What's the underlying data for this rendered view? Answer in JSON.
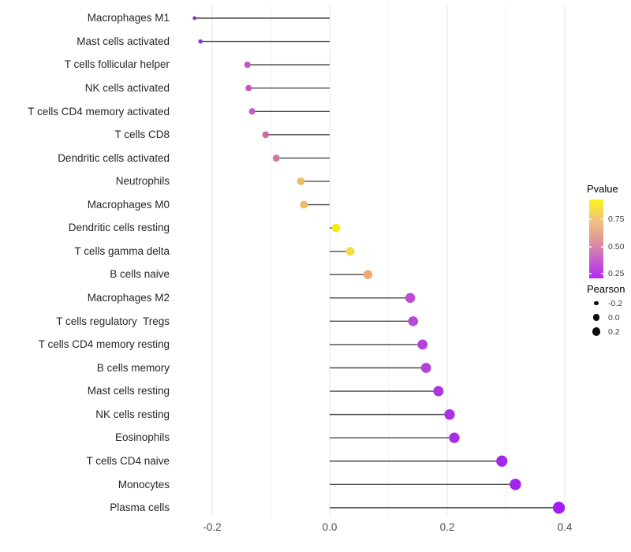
{
  "figure": {
    "background": "#ffffff",
    "title": ""
  },
  "chart_data": {
    "type": "lollipop",
    "orientation": "horizontal",
    "xlabel": "",
    "ylabel": "",
    "xlim": [
      -0.26,
      0.425
    ],
    "grid": "vertical-only",
    "x_ticks": [
      {
        "value": -0.2,
        "label": "-0.2"
      },
      {
        "value": 0.0,
        "label": "0.0"
      },
      {
        "value": 0.2,
        "label": "0.2"
      },
      {
        "value": 0.4,
        "label": "0.4"
      }
    ],
    "x_minor_ticks": [
      -0.1,
      0.1,
      0.3
    ],
    "series_name": "Pearson correlation",
    "rows": [
      {
        "label": "Macrophages M1",
        "pearson": -0.23,
        "color": "#8227D3"
      },
      {
        "label": "Mast cells activated",
        "pearson": -0.22,
        "color": "#8E2CD8"
      },
      {
        "label": "T cells follicular helper",
        "pearson": -0.14,
        "color": "#C353C8"
      },
      {
        "label": "NK cells activated",
        "pearson": -0.138,
        "color": "#C455C6"
      },
      {
        "label": "T cells CD4 memory activated",
        "pearson": -0.132,
        "color": "#C65AC4"
      },
      {
        "label": "T cells CD8",
        "pearson": -0.109,
        "color": "#CC6CAC"
      },
      {
        "label": "Dendritic cells activated",
        "pearson": -0.091,
        "color": "#D078A0"
      },
      {
        "label": "Neutrophils",
        "pearson": -0.049,
        "color": "#EDBB66"
      },
      {
        "label": "Macrophages M0",
        "pearson": -0.044,
        "color": "#EEBC60"
      },
      {
        "label": "Dendritic cells resting",
        "pearson": 0.011,
        "color": "#F4ED13"
      },
      {
        "label": "T cells gamma delta",
        "pearson": 0.035,
        "color": "#F1DC4A"
      },
      {
        "label": "B cells naive",
        "pearson": 0.065,
        "color": "#F0A96E"
      },
      {
        "label": "Macrophages M2",
        "pearson": 0.137,
        "color": "#BB4CD4"
      },
      {
        "label": "T cells regulatory  Tregs",
        "pearson": 0.142,
        "color": "#BA4AD5"
      },
      {
        "label": "T cells CD4 memory resting",
        "pearson": 0.158,
        "color": "#B242DB"
      },
      {
        "label": "B cells memory",
        "pearson": 0.164,
        "color": "#B140DC"
      },
      {
        "label": "Mast cells resting",
        "pearson": 0.185,
        "color": "#AB36E2"
      },
      {
        "label": "NK cells resting",
        "pearson": 0.204,
        "color": "#A832E5"
      },
      {
        "label": "Eosinophils",
        "pearson": 0.212,
        "color": "#A730E6"
      },
      {
        "label": "T cells CD4 naive",
        "pearson": 0.293,
        "color": "#A327EC"
      },
      {
        "label": "Monocytes",
        "pearson": 0.316,
        "color": "#A225EE"
      },
      {
        "label": "Plasma cells",
        "pearson": 0.39,
        "color": "#9F1EF4"
      }
    ],
    "legend": {
      "position": "right",
      "pvalue": {
        "title": "Pvalue",
        "ticks": [
          "0.75",
          "0.50",
          "0.25"
        ],
        "gradient_top_to_bottom": [
          "#FBF516",
          "#F1C47A",
          "#E29A97",
          "#C763C9",
          "#B32BF2"
        ]
      },
      "pearson": {
        "title": "Pearson",
        "items": [
          {
            "label": "-0.2",
            "value": -0.2
          },
          {
            "label": "0.0",
            "value": 0.0
          },
          {
            "label": "0.2",
            "value": 0.2
          }
        ],
        "dot_color": "#0d0d0d"
      }
    },
    "style": {
      "stem_color": "#4a4a4a",
      "major_grid_color": "#e7e7e7",
      "minor_grid_color": "#f2f2f2",
      "axis_text_color": "#4d4d4d",
      "label_text_color": "#262626"
    }
  }
}
